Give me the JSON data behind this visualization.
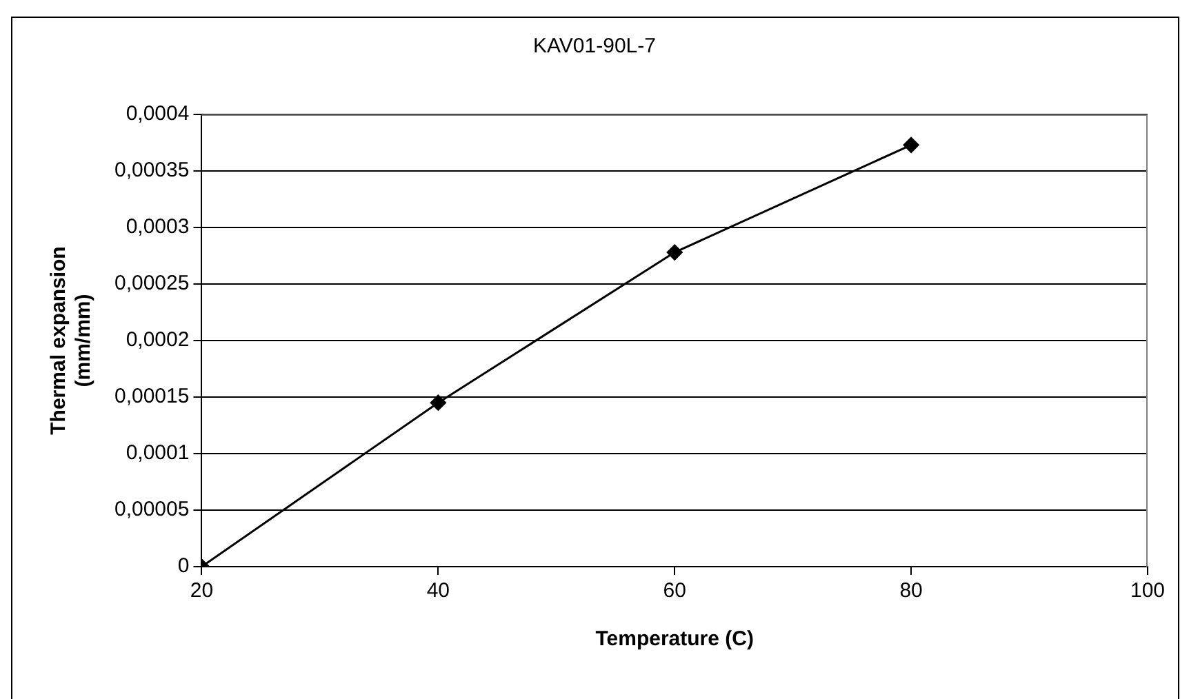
{
  "chart_data": {
    "type": "line",
    "title": "KAV01-90L-7",
    "xlabel": "Temperature (C)",
    "ylabel": "Thermal expansion\n(mm/mm)",
    "x": [
      20,
      40,
      60,
      80
    ],
    "series": [
      {
        "color": "#000000",
        "values": [
          0,
          0.000145,
          0.000278,
          0.000373
        ]
      }
    ],
    "xlim": [
      20,
      100
    ],
    "xticks": [
      20,
      40,
      60,
      80,
      100
    ],
    "ylim": [
      0,
      0.0004
    ],
    "yticks": [
      0,
      {
        "value": 5e-05,
        "label": "0,00005"
      },
      {
        "value": 0.0001,
        "label": "0,0001"
      },
      {
        "value": 0.00015,
        "label": "0,00015"
      },
      {
        "value": 0.0002,
        "label": "0,0002"
      },
      {
        "value": 0.00025,
        "label": "0,00025"
      },
      {
        "value": 0.0003,
        "label": "0,0003"
      },
      {
        "value": 0.00035,
        "label": "0,00035"
      },
      {
        "value": 0.0004,
        "label": "0,0004"
      }
    ],
    "grid": "y",
    "legend": false,
    "marker": "diamond",
    "line_style": "solid"
  }
}
